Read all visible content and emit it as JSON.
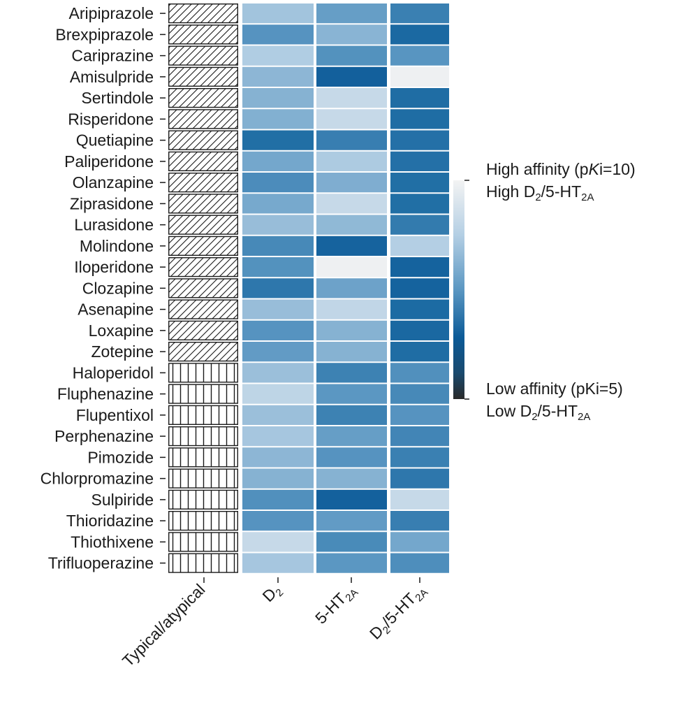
{
  "chart_data": {
    "type": "heatmap",
    "title": "",
    "columns": [
      "Typical/atypical",
      "D2",
      "5-HT2A",
      "D2/5-HT2A"
    ],
    "rows": [
      "Aripiprazole",
      "Brexpiprazole",
      "Cariprazine",
      "Amisulpride",
      "Sertindole",
      "Risperidone",
      "Quetiapine",
      "Paliperidone",
      "Olanzapine",
      "Ziprasidone",
      "Lurasidone",
      "Molindone",
      "Iloperidone",
      "Clozapine",
      "Asenapine",
      "Loxapine",
      "Zotepine",
      "Haloperidol",
      "Fluphenazine",
      "Flupentixol",
      "Perphenazine",
      "Pimozide",
      "Chlorpromazine",
      "Sulpiride",
      "Thioridazine",
      "Thiothixene",
      "Trifluoperazine"
    ],
    "class": [
      "atypical",
      "atypical",
      "atypical",
      "atypical",
      "atypical",
      "atypical",
      "atypical",
      "atypical",
      "atypical",
      "atypical",
      "atypical",
      "atypical",
      "atypical",
      "atypical",
      "atypical",
      "atypical",
      "atypical",
      "typical",
      "typical",
      "typical",
      "typical",
      "typical",
      "typical",
      "typical",
      "typical",
      "typical",
      "typical"
    ],
    "class_patterns": {
      "atypical": "diagonal-hatch",
      "typical": "vertical-hatch"
    },
    "value_scale": "relative affinity, 0 = high (pKi=10), 1 = low (pKi=5)",
    "D2": [
      0.3,
      0.52,
      0.26,
      0.36,
      0.38,
      0.39,
      0.73,
      0.43,
      0.56,
      0.42,
      0.33,
      0.58,
      0.53,
      0.68,
      0.33,
      0.52,
      0.48,
      0.32,
      0.21,
      0.32,
      0.29,
      0.36,
      0.38,
      0.54,
      0.52,
      0.18,
      0.29
    ],
    "5-HT2A": [
      0.47,
      0.37,
      0.53,
      0.88,
      0.18,
      0.18,
      0.64,
      0.27,
      0.4,
      0.18,
      0.35,
      0.84,
      0.02,
      0.45,
      0.2,
      0.38,
      0.38,
      0.62,
      0.5,
      0.62,
      0.47,
      0.52,
      0.38,
      0.87,
      0.48,
      0.57,
      0.5
    ],
    "D2/5-HT2A": [
      0.63,
      0.77,
      0.51,
      0.02,
      0.74,
      0.74,
      0.72,
      0.72,
      0.73,
      0.73,
      0.66,
      0.25,
      0.85,
      0.85,
      0.75,
      0.78,
      0.74,
      0.54,
      0.58,
      0.52,
      0.6,
      0.63,
      0.68,
      0.18,
      0.64,
      0.43,
      0.55
    ],
    "colorbar": {
      "high_label": "High affinity (pKi=10)",
      "high_sub": "High D2/5-HT2A",
      "low_label": "Low affinity (pKi=5)",
      "low_sub": "Low D2/5-HT2A"
    },
    "legend_position": "right"
  },
  "legend": {
    "high_line1_pre": "High affinity (p",
    "high_line1_k": "K",
    "high_line1_post": "i=10)",
    "high_line2_pre": "High D",
    "high_line2_sub1": "2",
    "high_line2_mid": "/5-HT",
    "high_line2_sub2": "2A",
    "low_line1": "Low affinity (pKi=5)",
    "low_line2_pre": "Low D",
    "low_line2_sub1": "2",
    "low_line2_mid": "/5-HT",
    "low_line2_sub2": "2A"
  },
  "axis_labels": {
    "typical": "Typical/atypical",
    "d2_main": "D",
    "d2_sub": "2",
    "ht_main": "5-HT",
    "ht_sub": "2A",
    "ratio_main1": "D",
    "ratio_sub1": "2",
    "ratio_main2": "/5-HT",
    "ratio_sub2": "2A"
  },
  "colors": {
    "cell_light": "#f3f3f3",
    "cell_mid": "#5b97c2",
    "cell_dark": "#0b5a97",
    "gap": "#ffffff",
    "bar_bottom": "#2a2a2a"
  }
}
